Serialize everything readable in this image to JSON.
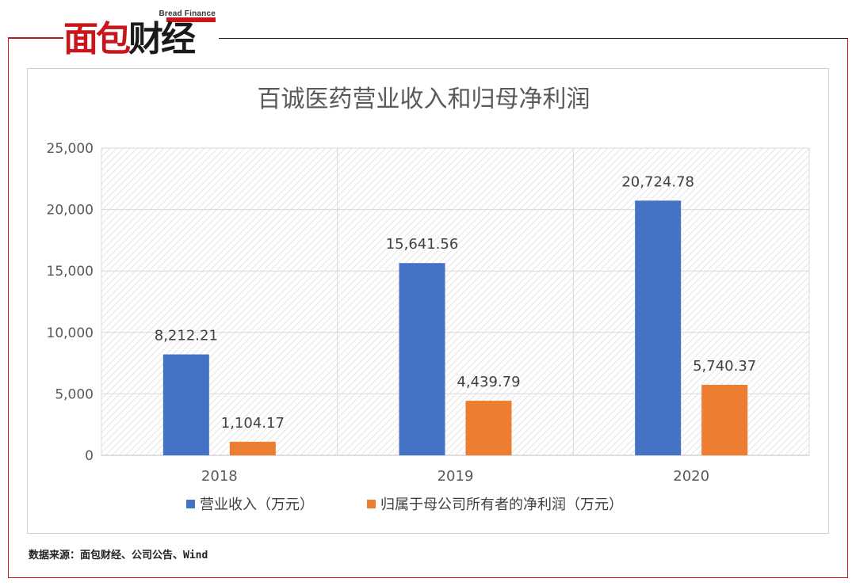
{
  "brand": {
    "logo_en": "Bread Finance",
    "logo_cn_part1": "面包",
    "logo_cn_part2": "财经",
    "color_red": "#c8161d"
  },
  "source_note": "数据来源：面包财经、公司公告、Wind",
  "chart_data": {
    "type": "bar",
    "title": "百诚医药营业收入和归母净利润",
    "categories": [
      "2018",
      "2019",
      "2020"
    ],
    "series": [
      {
        "name": "营业收入（万元）",
        "color": "#4472c4",
        "values": [
          8212.21,
          15641.56,
          20724.78
        ],
        "labels": [
          "8,212.21",
          "15,641.56",
          "20,724.78"
        ]
      },
      {
        "name": "归属于母公司所有者的净利润（万元）",
        "color": "#ed7d31",
        "values": [
          1104.17,
          4439.79,
          5740.37
        ],
        "labels": [
          "1,104.17",
          "4,439.79",
          "5,740.37"
        ]
      }
    ],
    "ylim": [
      0,
      25000
    ],
    "yticks": [
      0,
      5000,
      10000,
      15000,
      20000,
      25000
    ],
    "ytick_labels": [
      "0",
      "5,000",
      "10,000",
      "15,000",
      "20,000",
      "25,000"
    ],
    "grid": true,
    "legend_position": "bottom",
    "xlabel": "",
    "ylabel": ""
  }
}
